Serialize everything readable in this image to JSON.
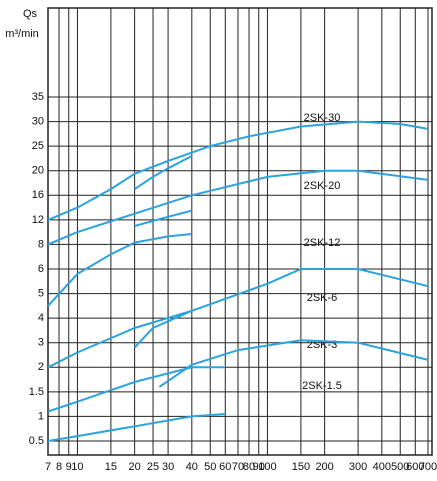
{
  "chart_data": {
    "type": "line",
    "y_label": "Qs",
    "y_unit": "m³/min",
    "xlog": true,
    "grid": true,
    "xlim": [
      7,
      700
    ],
    "xticks": [
      7,
      8,
      9,
      10,
      15,
      20,
      25,
      30,
      40,
      50,
      60,
      70,
      80,
      90,
      100,
      150,
      200,
      300,
      400,
      500,
      600,
      700
    ],
    "ylim": [
      0.5,
      35
    ],
    "yticks": [
      0.5,
      1,
      1.5,
      2,
      3,
      4,
      5,
      6,
      8,
      12,
      16,
      20,
      25,
      30,
      35
    ],
    "annotations": [
      "2SK-30",
      "2SK-20",
      "2SK-12",
      "2SK-6",
      "2SK-3",
      "2SK-1.5"
    ],
    "series": [
      {
        "color": "#2aa3de",
        "x": [
          7,
          10,
          15,
          20,
          30,
          50,
          80,
          150,
          300,
          500,
          700
        ],
        "values": [
          12,
          14,
          17,
          19.5,
          22,
          25,
          27,
          29,
          30,
          29.5,
          28.5
        ]
      },
      {
        "color": "#2aa3de",
        "x": [
          20,
          25,
          30,
          40
        ],
        "values": [
          17,
          19,
          20.5,
          23
        ]
      },
      {
        "color": "#2aa3de",
        "x": [
          7,
          10,
          20,
          40,
          100,
          200,
          300,
          700
        ],
        "values": [
          8,
          10,
          13,
          16,
          19,
          20,
          20,
          18.5
        ]
      },
      {
        "color": "#2aa3de",
        "x": [
          20,
          30,
          40
        ],
        "values": [
          11,
          12.5,
          13.5
        ]
      },
      {
        "color": "#2aa3de",
        "x": [
          7,
          10,
          15,
          20,
          30,
          40
        ],
        "values": [
          4.5,
          5.8,
          7.2,
          8.3,
          9.3,
          9.7
        ]
      },
      {
        "color": "#2aa3de",
        "x": [
          7,
          10,
          20,
          40,
          100,
          150,
          300,
          700
        ],
        "values": [
          2,
          2.6,
          3.6,
          4.3,
          5.4,
          6,
          6,
          5.3
        ]
      },
      {
        "color": "#2aa3de",
        "x": [
          20,
          25,
          40
        ],
        "values": [
          2.8,
          3.6,
          4.3
        ]
      },
      {
        "color": "#2aa3de",
        "x": [
          7,
          10,
          20,
          40,
          60
        ],
        "values": [
          1.1,
          1.3,
          1.7,
          2,
          2
        ]
      },
      {
        "color": "#2aa3de",
        "x": [
          27,
          40,
          70,
          150,
          300,
          700
        ],
        "values": [
          1.6,
          2.1,
          2.7,
          3.1,
          3,
          2.3
        ]
      },
      {
        "color": "#2aa3de",
        "x": [
          7,
          10,
          20,
          40,
          60
        ],
        "values": [
          0.5,
          0.6,
          0.8,
          1,
          1.05
        ]
      }
    ]
  }
}
